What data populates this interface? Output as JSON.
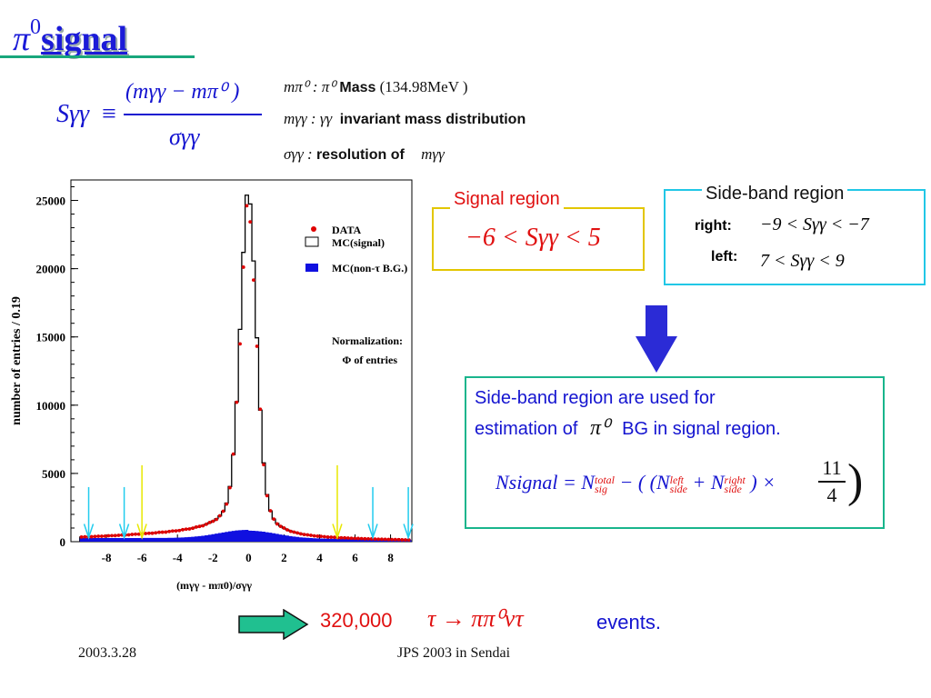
{
  "title": {
    "symbol": "π",
    "superscript": "0",
    "word": "signal"
  },
  "formula": {
    "lhs": "Sγγ",
    "equiv": "≡",
    "numerator": "(mγγ − mπ⁰ )",
    "denominator": "σγγ"
  },
  "legend_defs": [
    {
      "symbol": "mπ⁰ : π⁰",
      "label": "Mass",
      "tail": "(134.98MeV )"
    },
    {
      "symbol": "mγγ : γγ",
      "label": "invariant mass distribution",
      "tail": ""
    },
    {
      "symbol": "σγγ :",
      "label": "resolution of",
      "tail": "mγγ"
    }
  ],
  "signal_region": {
    "label": "Signal region",
    "formula": "−6 < Sγγ < 5",
    "color": "#e01010"
  },
  "sideband_region": {
    "label": "Side-band region",
    "right_label": "right",
    "right_formula": "−9 < Sγγ < −7",
    "left_label": "left",
    "left_formula": "7 < Sγγ < 9"
  },
  "bg_box": {
    "text_line1": "Side-band region are used for",
    "text_line2_prefix": "estimation of",
    "text_line2_symbol": "π⁰",
    "text_line2_suffix": "BG in signal region.",
    "formula_lhs": "Nsignal = N",
    "formula_sig_sup": "total",
    "formula_sig_sub": "sig",
    "formula_middle": "− ( (N",
    "formula_left_sup": "left",
    "formula_left_sub": "side",
    "formula_plus": "+ N",
    "formula_right_sup": "right",
    "formula_right_sub": "side",
    "formula_times": ") ×",
    "frac_num": "11",
    "frac_den": "4"
  },
  "events": {
    "count": "320,000",
    "decay": "τ → ππ⁰ντ",
    "suffix": "events."
  },
  "footer": {
    "date": "2003.3.28",
    "venue": "JPS 2003 in Sendai"
  },
  "chart_data": {
    "type": "histogram",
    "xlabel": "(mγγ - mπ0)/σγγ",
    "ylabel": "number of entries   / 0.19",
    "xlim": [
      -10,
      9.2
    ],
    "ylim": [
      0,
      26500
    ],
    "xticks": [
      -8,
      -6,
      -4,
      -2,
      0,
      2,
      4,
      6,
      8
    ],
    "yticks": [
      0,
      5000,
      10000,
      15000,
      20000,
      25000
    ],
    "legend": [
      {
        "name": "DATA",
        "style": "red-dot"
      },
      {
        "name": "MC(signal)",
        "style": "open-box"
      },
      {
        "name": "MC(non-τ B.G.)",
        "style": "filled-blue"
      }
    ],
    "note_title": "Normalization:",
    "note_body": "Φ of entries",
    "peak": 25000,
    "signal_cut_lines": [
      -6,
      5
    ],
    "sideband_cut_lines": [
      -9,
      -7,
      7,
      9
    ],
    "colors": {
      "data": "#e00000",
      "mc": "#000000",
      "bg": "#1010e0",
      "signal_cut": "#e8e800",
      "sideband_cut": "#22ccee"
    }
  }
}
